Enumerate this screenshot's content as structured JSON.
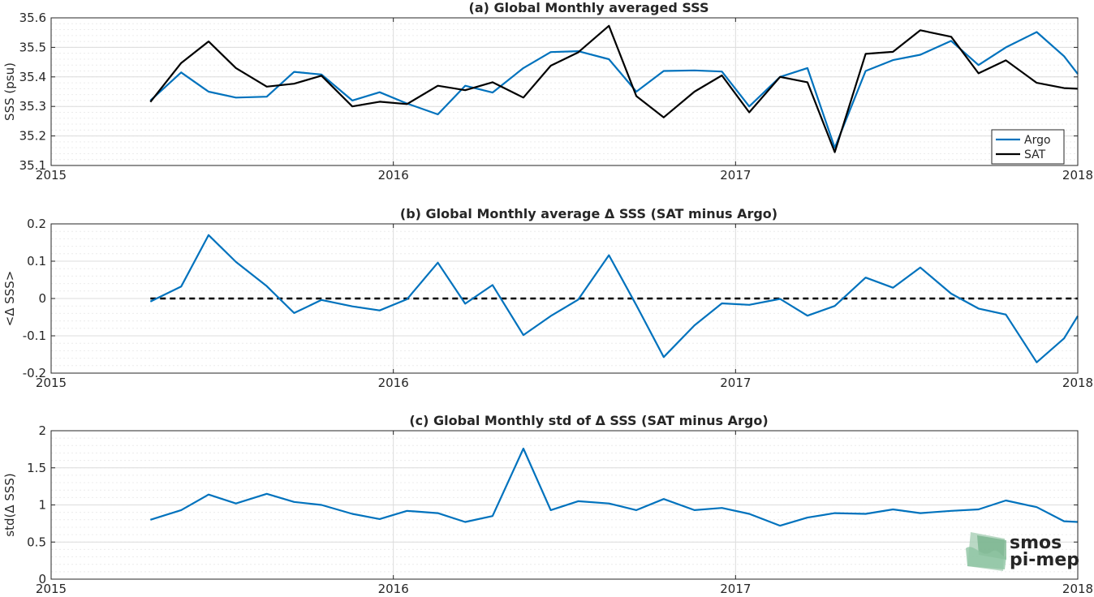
{
  "chart_data": [
    {
      "type": "line",
      "title": "(a) Global Monthly averaged SSS",
      "xlabel": "",
      "ylabel": "SSS (psu)",
      "xlim": [
        2015,
        2018
      ],
      "ylim": [
        35.1,
        35.6
      ],
      "xticks": [
        "2015",
        "2016",
        "2017",
        "2018"
      ],
      "yticks": [
        "35.1",
        "35.2",
        "35.3",
        "35.4",
        "35.5",
        "35.6"
      ],
      "ytick_values": [
        35.1,
        35.2,
        35.3,
        35.4,
        35.5,
        35.6
      ],
      "grid": true,
      "legend": "bottom-right",
      "x": [
        2015.29,
        2015.38,
        2015.46,
        2015.54,
        2015.63,
        2015.71,
        2015.79,
        2015.88,
        2015.96,
        2016.04,
        2016.13,
        2016.21,
        2016.29,
        2016.38,
        2016.46,
        2016.54,
        2016.63,
        2016.71,
        2016.79,
        2016.88,
        2016.96,
        2017.04,
        2017.13,
        2017.21,
        2017.29,
        2017.38,
        2017.46,
        2017.54,
        2017.63,
        2017.71,
        2017.79,
        2017.88,
        2017.96,
        2018.0
      ],
      "series": [
        {
          "name": "Argo",
          "color": "#0072bd",
          "values": [
            35.32,
            35.415,
            35.35,
            35.33,
            35.333,
            35.417,
            35.408,
            35.32,
            35.348,
            35.31,
            35.273,
            35.37,
            35.347,
            35.43,
            35.484,
            35.487,
            35.46,
            35.35,
            35.42,
            35.422,
            35.418,
            35.3,
            35.4,
            35.43,
            35.16,
            35.42,
            35.457,
            35.475,
            35.522,
            35.44,
            35.5,
            35.552,
            35.47,
            35.41
          ]
        },
        {
          "name": "SAT",
          "color": "#000000",
          "values": [
            35.315,
            35.447,
            35.52,
            35.43,
            35.367,
            35.377,
            35.404,
            35.3,
            35.316,
            35.308,
            35.37,
            35.355,
            35.382,
            35.33,
            35.438,
            35.483,
            35.573,
            35.335,
            35.263,
            35.35,
            35.405,
            35.28,
            35.4,
            35.382,
            35.145,
            35.478,
            35.485,
            35.558,
            35.536,
            35.412,
            35.456,
            35.38,
            35.362,
            35.36
          ]
        }
      ]
    },
    {
      "type": "line",
      "title": "(b) Global Monthly average Δ SSS (SAT minus Argo)",
      "xlabel": "",
      "ylabel": "<Δ SSS>",
      "xlim": [
        2015,
        2018
      ],
      "ylim": [
        -0.2,
        0.2
      ],
      "xticks": [
        "2015",
        "2016",
        "2017",
        "2018"
      ],
      "yticks": [
        "-0.2",
        "-0.1",
        "0",
        "0.1",
        "0.2"
      ],
      "ytick_values": [
        -0.2,
        -0.1,
        0,
        0.1,
        0.2
      ],
      "grid": true,
      "reference_line": 0,
      "x": [
        2015.29,
        2015.38,
        2015.46,
        2015.54,
        2015.63,
        2015.71,
        2015.79,
        2015.88,
        2015.96,
        2016.04,
        2016.13,
        2016.21,
        2016.29,
        2016.38,
        2016.46,
        2016.54,
        2016.63,
        2016.71,
        2016.79,
        2016.88,
        2016.96,
        2017.04,
        2017.13,
        2017.21,
        2017.29,
        2017.38,
        2017.46,
        2017.54,
        2017.63,
        2017.71,
        2017.79,
        2017.88,
        2017.96,
        2018.0
      ],
      "series": [
        {
          "color": "#0072bd",
          "values": [
            -0.008,
            0.032,
            0.17,
            0.098,
            0.033,
            -0.039,
            -0.004,
            -0.021,
            -0.032,
            -0.002,
            0.096,
            -0.014,
            0.036,
            -0.098,
            -0.047,
            -0.003,
            0.116,
            -0.018,
            -0.157,
            -0.072,
            -0.013,
            -0.017,
            -0.001,
            -0.046,
            -0.02,
            0.056,
            0.029,
            0.083,
            0.013,
            -0.027,
            -0.043,
            -0.171,
            -0.107,
            -0.047
          ]
        }
      ]
    },
    {
      "type": "line",
      "title": "(c) Global Monthly std of Δ SSS (SAT minus Argo)",
      "xlabel": "",
      "ylabel": "std(Δ SSS)",
      "xlim": [
        2015,
        2018
      ],
      "ylim": [
        0,
        2
      ],
      "xticks": [
        "2015",
        "2016",
        "2017",
        "2018"
      ],
      "yticks": [
        "0",
        "0.5",
        "1",
        "1.5",
        "2"
      ],
      "ytick_values": [
        0,
        0.5,
        1,
        1.5,
        2
      ],
      "grid": true,
      "x": [
        2015.29,
        2015.38,
        2015.46,
        2015.54,
        2015.63,
        2015.71,
        2015.79,
        2015.88,
        2015.96,
        2016.04,
        2016.13,
        2016.21,
        2016.29,
        2016.38,
        2016.46,
        2016.54,
        2016.63,
        2016.71,
        2016.79,
        2016.88,
        2016.96,
        2017.04,
        2017.13,
        2017.21,
        2017.29,
        2017.38,
        2017.46,
        2017.54,
        2017.63,
        2017.71,
        2017.79,
        2017.88,
        2017.96,
        2018.0
      ],
      "series": [
        {
          "color": "#0072bd",
          "values": [
            0.8,
            0.93,
            1.14,
            1.02,
            1.15,
            1.04,
            1.0,
            0.88,
            0.81,
            0.92,
            0.89,
            0.77,
            0.85,
            1.76,
            0.93,
            1.05,
            1.02,
            0.93,
            1.08,
            0.93,
            0.96,
            0.88,
            0.72,
            0.83,
            0.89,
            0.88,
            0.94,
            0.89,
            0.92,
            0.94,
            1.06,
            0.97,
            0.78,
            0.77
          ]
        }
      ]
    }
  ],
  "logo": {
    "line1": "smos",
    "line2": "pi-mep",
    "color": "#7fb28f"
  }
}
